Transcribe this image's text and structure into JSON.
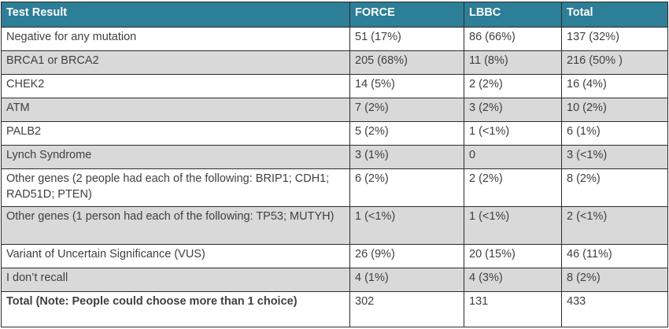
{
  "table": {
    "headers": [
      "Test Result",
      "FORCE",
      "LBBC",
      "Total"
    ],
    "rows": [
      [
        "Negative for any mutation",
        "51 (17%)",
        "86 (66%)",
        "137 (32%)"
      ],
      [
        "BRCA1 or BRCA2",
        "205 (68%)",
        "11 (8%)",
        "216 (50% )"
      ],
      [
        "CHEK2",
        "14 (5%)",
        "2 (2%)",
        "16 (4%)"
      ],
      [
        "ATM",
        "7 (2%)",
        "3 (2%)",
        "10 (2%)"
      ],
      [
        "PALB2",
        "5 (2%)",
        "1 (<1%)",
        "6 (1%)"
      ],
      [
        "Lynch Syndrome",
        "3 (1%)",
        "0",
        "3 (<1%)"
      ],
      [
        "Other genes (2 people had each of the following: BRIP1; CDH1; RAD51D; PTEN)",
        "6 (2%)",
        "2 (2%)",
        "8 (2%)"
      ],
      [
        "Other genes (1 person had each of the following: TP53; MUTYH)",
        "1 (<1%)",
        "1 (<1%)",
        "2 (<1%)"
      ],
      [
        "Variant of Uncertain Significance (VUS)",
        "26 (9%)",
        "20 (15%)",
        "46 (11%)"
      ],
      [
        "I don’t recall",
        "4 (1%)",
        "4 (3%)",
        "8 (2%)"
      ]
    ],
    "total_row": [
      "Total (Note: People could choose more than 1 choice)",
      "302",
      "131",
      "433"
    ]
  },
  "colors": {
    "header_bg": "#2d7e97",
    "row_alt_bg": "#d9d9d9",
    "border": "#2c2c2c"
  }
}
